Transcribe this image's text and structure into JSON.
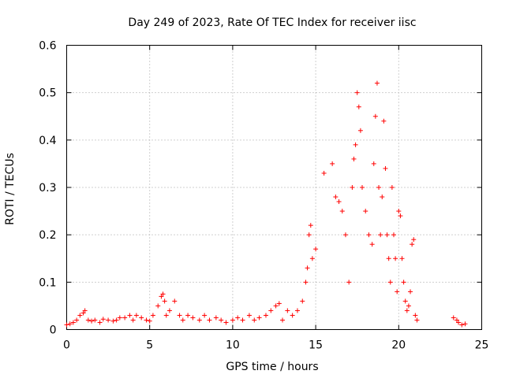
{
  "chart_data": {
    "type": "scatter",
    "title": "Day 249 of 2023, Rate Of TEC Index for receiver iisc",
    "xlabel": "GPS time / hours",
    "ylabel": "ROTI / TECUs",
    "xlim": [
      0,
      25
    ],
    "ylim": [
      0,
      0.6
    ],
    "xticks": [
      "0",
      "5",
      "10",
      "15",
      "20",
      "25"
    ],
    "yticks": [
      "0",
      "0.1",
      "0.2",
      "0.3",
      "0.4",
      "0.5",
      "0.6"
    ],
    "grid": true,
    "legend": "none",
    "marker": "plus",
    "color": "#ff0000",
    "series": [
      {
        "name": "ROTI",
        "x": [
          0.0,
          0.2,
          0.4,
          0.6,
          0.8,
          1.0,
          1.1,
          1.3,
          1.5,
          1.7,
          2.0,
          2.2,
          2.5,
          2.8,
          3.0,
          3.2,
          3.5,
          3.8,
          4.0,
          4.2,
          4.5,
          4.8,
          5.0,
          5.2,
          5.5,
          5.7,
          5.8,
          5.9,
          6.0,
          6.2,
          6.5,
          6.8,
          7.0,
          7.3,
          7.6,
          8.0,
          8.3,
          8.6,
          9.0,
          9.3,
          9.6,
          10.0,
          10.3,
          10.6,
          11.0,
          11.3,
          11.6,
          12.0,
          12.3,
          12.6,
          12.8,
          13.0,
          13.3,
          13.6,
          13.9,
          14.2,
          14.4,
          14.5,
          14.6,
          14.7,
          14.8,
          15.0,
          15.5,
          16.0,
          16.2,
          16.4,
          16.6,
          16.8,
          17.0,
          17.2,
          17.3,
          17.4,
          17.5,
          17.6,
          17.7,
          17.8,
          18.0,
          18.2,
          18.4,
          18.5,
          18.6,
          18.7,
          18.8,
          18.9,
          19.0,
          19.1,
          19.2,
          19.3,
          19.4,
          19.5,
          19.6,
          19.7,
          19.8,
          19.9,
          20.0,
          20.1,
          20.2,
          20.3,
          20.4,
          20.5,
          20.6,
          20.7,
          20.8,
          20.9,
          21.0,
          21.1,
          23.3,
          23.5,
          23.6,
          23.8,
          24.0
        ],
        "y": [
          0.01,
          0.012,
          0.015,
          0.02,
          0.03,
          0.035,
          0.04,
          0.02,
          0.018,
          0.02,
          0.015,
          0.022,
          0.02,
          0.018,
          0.02,
          0.025,
          0.025,
          0.03,
          0.02,
          0.03,
          0.025,
          0.02,
          0.018,
          0.03,
          0.05,
          0.07,
          0.075,
          0.06,
          0.03,
          0.04,
          0.06,
          0.03,
          0.02,
          0.03,
          0.025,
          0.02,
          0.03,
          0.02,
          0.025,
          0.02,
          0.015,
          0.02,
          0.025,
          0.02,
          0.03,
          0.02,
          0.025,
          0.03,
          0.04,
          0.05,
          0.055,
          0.02,
          0.04,
          0.03,
          0.04,
          0.06,
          0.1,
          0.13,
          0.2,
          0.22,
          0.15,
          0.17,
          0.33,
          0.35,
          0.28,
          0.27,
          0.25,
          0.2,
          0.1,
          0.3,
          0.36,
          0.39,
          0.5,
          0.47,
          0.42,
          0.3,
          0.25,
          0.2,
          0.18,
          0.35,
          0.45,
          0.52,
          0.3,
          0.2,
          0.28,
          0.44,
          0.34,
          0.2,
          0.15,
          0.1,
          0.3,
          0.2,
          0.15,
          0.08,
          0.25,
          0.24,
          0.15,
          0.1,
          0.06,
          0.04,
          0.05,
          0.08,
          0.18,
          0.19,
          0.03,
          0.02,
          0.025,
          0.02,
          0.015,
          0.01,
          0.012
        ]
      }
    ]
  }
}
